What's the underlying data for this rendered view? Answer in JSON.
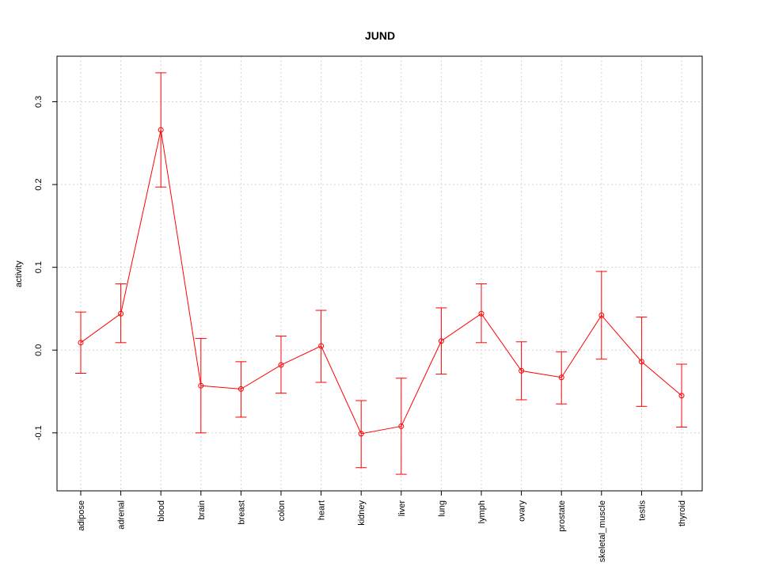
{
  "chart_data": {
    "type": "line",
    "title": "JUND",
    "xlabel": "",
    "ylabel": "activity",
    "categories": [
      "adipose",
      "adrenal",
      "blood",
      "brain",
      "breast",
      "colon",
      "heart",
      "kidney",
      "liver",
      "lung",
      "lymph",
      "ovary",
      "prostate",
      "skeletal_muscle",
      "testis",
      "thyroid"
    ],
    "values": [
      0.009,
      0.044,
      0.266,
      -0.043,
      -0.047,
      -0.018,
      0.005,
      -0.101,
      -0.092,
      0.011,
      0.044,
      -0.025,
      -0.033,
      0.042,
      -0.014,
      -0.055
    ],
    "error_low": [
      -0.028,
      0.009,
      0.197,
      -0.1,
      -0.081,
      -0.052,
      -0.039,
      -0.142,
      -0.15,
      -0.029,
      0.009,
      -0.06,
      -0.065,
      -0.011,
      -0.068,
      -0.093
    ],
    "error_high": [
      0.046,
      0.08,
      0.335,
      0.014,
      -0.014,
      0.017,
      0.048,
      -0.061,
      -0.034,
      0.051,
      0.08,
      0.01,
      -0.002,
      0.095,
      0.04,
      -0.017
    ],
    "yticks": [
      -0.1,
      0.0,
      0.1,
      0.2,
      0.3
    ],
    "ytick_labels": [
      "-0.1",
      "0.0",
      "0.1",
      "0.2",
      "0.3"
    ],
    "ylim": [
      -0.17,
      0.355
    ],
    "grid": true,
    "reference_line": 0,
    "color": "#ff0000",
    "grid_color": "#d3d3d3"
  }
}
